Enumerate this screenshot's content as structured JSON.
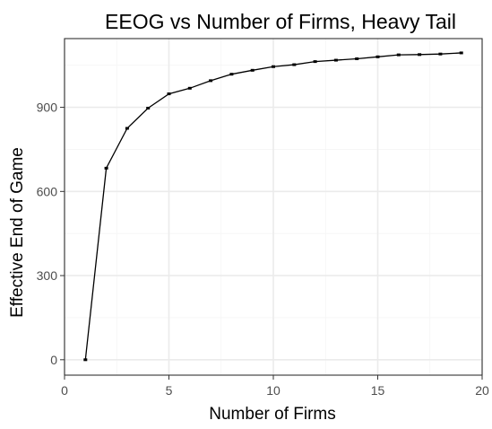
{
  "chart_data": {
    "type": "line",
    "title": "EEOG vs Number of Firms, Heavy Tail",
    "xlabel": "Number of Firms",
    "ylabel": "Effective End of Game",
    "xlim": [
      0,
      20
    ],
    "ylim": [
      -55,
      1145
    ],
    "x_ticks": [
      0,
      5,
      10,
      15,
      20
    ],
    "y_ticks": [
      0,
      300,
      600,
      900
    ],
    "x_tick_labels": [
      "0",
      "5",
      "10",
      "15",
      "20"
    ],
    "y_tick_labels": [
      "0",
      "300",
      "600",
      "900"
    ],
    "grid": true,
    "legend": "none",
    "colors": {
      "panel_background": "#ffffff",
      "grid_major": "#ebebeb",
      "grid_minor": "#f5f5f5",
      "panel_border": "#333333",
      "line": "#000000",
      "tick_text": "#4d4d4d"
    },
    "series": [
      {
        "x": [
          1,
          2,
          3,
          4,
          5,
          6,
          7,
          8,
          9,
          10,
          11,
          12,
          13,
          14,
          15,
          16,
          17,
          18,
          19
        ],
        "values": [
          0,
          683,
          825,
          897,
          948,
          968,
          995,
          1018,
          1032,
          1045,
          1052,
          1063,
          1068,
          1073,
          1080,
          1087,
          1088,
          1090,
          1094
        ]
      }
    ]
  }
}
